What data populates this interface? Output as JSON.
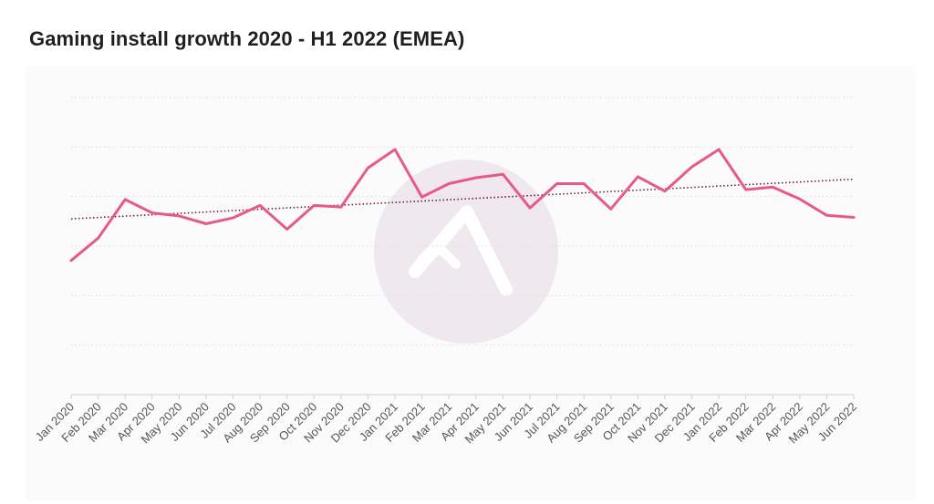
{
  "title": "Gaming install growth 2020 - H1 2022 (EMEA)",
  "colors": {
    "line": "#e85a86",
    "trend": "#6b1f3a",
    "grid": "#dcdcdc",
    "axis": "#cfcfcf",
    "watermark": "#f0e8ef"
  },
  "chart_data": {
    "type": "line",
    "title": "Gaming install growth 2020 - H1 2022 (EMEA)",
    "xlabel": "",
    "ylabel": "",
    "ylim": [
      0,
      6
    ],
    "grid": true,
    "legend": "none",
    "categories": [
      "Jan 2020",
      "Feb 2020",
      "Mar 2020",
      "Apr 2020",
      "May 2020",
      "Jun 2020",
      "Jul 2020",
      "Aug 2020",
      "Sep 2020",
      "Oct 2020",
      "Nov 2020",
      "Dec 2020",
      "Jan 2021",
      "Feb 2021",
      "Mar 2021",
      "Apr 2021",
      "May 2021",
      "Jun 2021",
      "Jul 2021",
      "Aug 2021",
      "Sep 2021",
      "Oct 2021",
      "Nov 2021",
      "Dec 2021",
      "Jan 2022",
      "Feb 2022",
      "Mar 2022",
      "Apr 2022",
      "May 2022",
      "Jun 2022"
    ],
    "series": [
      {
        "values": [
          2.71,
          3.16,
          3.94,
          3.67,
          3.61,
          3.45,
          3.57,
          3.82,
          3.34,
          3.82,
          3.79,
          4.58,
          4.95,
          3.99,
          4.26,
          4.38,
          4.45,
          3.77,
          4.26,
          4.26,
          3.75,
          4.4,
          4.11,
          4.6,
          4.95,
          4.14,
          4.19,
          3.95,
          3.62,
          3.58
        ]
      }
    ],
    "trendline": {
      "style": "dotted",
      "start": 3.55,
      "end": 4.35
    }
  }
}
